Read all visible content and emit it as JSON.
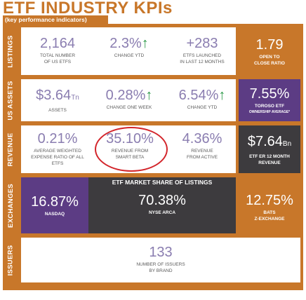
{
  "header": {
    "title": "ETF INDUSTRY  KPIs",
    "subtitle": "(key performance indicators)"
  },
  "colors": {
    "orange": "#c8772a",
    "purple": "#5c3c84",
    "dark": "#3d3b3e",
    "text_value": "#8a7db0",
    "up_arrow": "#2e9a4a",
    "highlight_circle": "#d3252b"
  },
  "rows": {
    "listings": {
      "label": "LISTINGS",
      "cells": [
        {
          "value": "2,164",
          "caption": "TOTAL NUMBER\nOF US ETFs"
        },
        {
          "value": "2.3%",
          "arrow": "↑",
          "caption": "CHANGE YTD"
        },
        {
          "value": "+283",
          "caption": "ETFs LAUNCHED\nIN LAST 12 MONTHS"
        }
      ],
      "box": {
        "value": "1.79",
        "caption": "OPEN TO\nCLOSE RATIO"
      }
    },
    "us_assets": {
      "label": "US ASSETS",
      "cells": [
        {
          "value": "$3.64",
          "unit": "Tn",
          "caption": "ASSETS"
        },
        {
          "value": "0.28%",
          "arrow": "↑",
          "caption": "CHANGE ONE WEEK"
        },
        {
          "value": "6.54%",
          "arrow": "↑",
          "caption": "CHANGE YTD"
        }
      ],
      "box": {
        "value": "7.55%",
        "caption": "TOROSO ETF",
        "caption2": "OWNERSHIP AVERAGE*"
      }
    },
    "revenue": {
      "label": "REVENUE",
      "cells": [
        {
          "value": "0.21%",
          "caption": "AVERAGE WEIGHTED\nEXPENSE RATIO OF ALL\nETFS"
        },
        {
          "value": "35.10%",
          "caption": "REVENUE FROM\nSMART BETA"
        },
        {
          "value": "4.36%",
          "caption": "REVENUE\nFROM ACTIVE"
        }
      ],
      "box": {
        "value": "$7.64",
        "unit": "Bn",
        "caption": "ETF ER 12 MONTH\nREVENUE"
      }
    },
    "exchanges": {
      "label": "EXCHANGES",
      "heading": "ETF MARKET SHARE OF LISTINGS",
      "nasdaq": {
        "value": "16.87%",
        "caption": "NASDAQ"
      },
      "nyse": {
        "value": "70.38%",
        "caption": "NYSE ARCA"
      },
      "bats": {
        "value": "12.75%",
        "caption": "BATS\nZ-EXCHANGE"
      }
    },
    "issuers": {
      "label": "ISSUERS",
      "value": "133",
      "caption": "NUMBER OF ISSUERS\nBY BRAND"
    }
  }
}
